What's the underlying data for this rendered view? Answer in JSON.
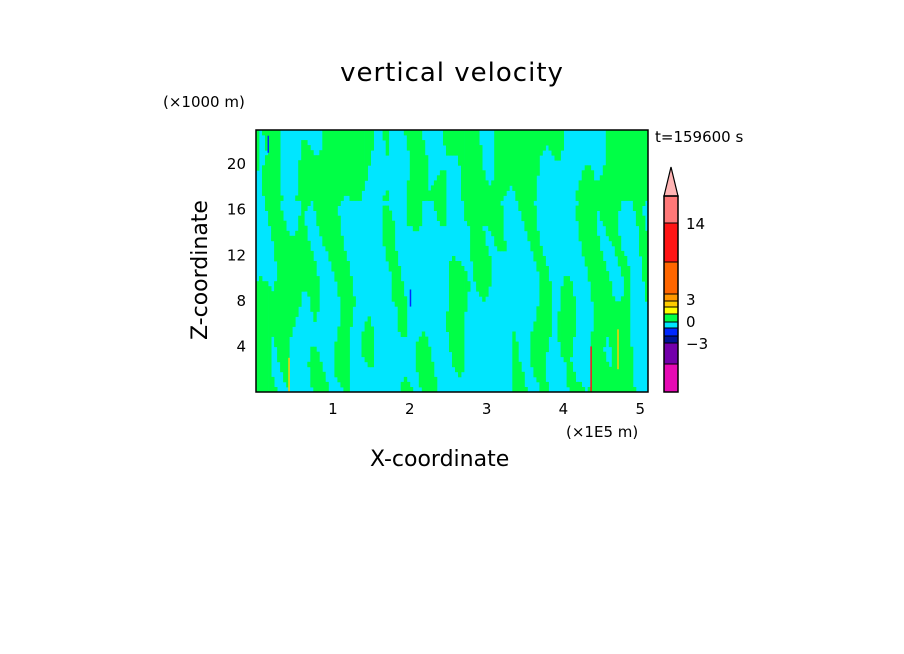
{
  "chart_data": {
    "type": "heatmap",
    "title": "vertical velocity",
    "xlabel": "X-coordinate",
    "ylabel": "Z-coordinate",
    "x_unit": "(×1E5 m)",
    "y_unit": "(×1000 m)",
    "annotation": "t=159600 s",
    "xlim": [
      0,
      5.1
    ],
    "ylim": [
      0,
      23
    ],
    "xticks": [
      "1",
      "2",
      "3",
      "4",
      "5"
    ],
    "xtick_values": [
      1,
      2,
      3,
      4,
      5
    ],
    "yticks": [
      "4",
      "8",
      "12",
      "16",
      "20"
    ],
    "ytick_values": [
      4,
      8,
      12,
      16,
      20
    ],
    "colorbar": {
      "labels": [
        "14",
        "3",
        "0",
        "−3"
      ],
      "label_levels": [
        14,
        3,
        0,
        -3
      ],
      "levels": [
        "below",
        -6,
        -3,
        -2,
        -1,
        0,
        1,
        2,
        3,
        4,
        8,
        14,
        "above",
        "extend"
      ],
      "colors": [
        "#e60ab4",
        "#7300aa",
        "#001496",
        "#0028ff",
        "#00e6ff",
        "#00ff46",
        "#ffff00",
        "#ffcc00",
        "#ff9900",
        "#ff6600",
        "#ff1414",
        "#ff7878",
        "#ffb4b4"
      ]
    },
    "dominant_classes": {
      "negative": "#00e6ff",
      "positive": "#00ff46"
    }
  }
}
